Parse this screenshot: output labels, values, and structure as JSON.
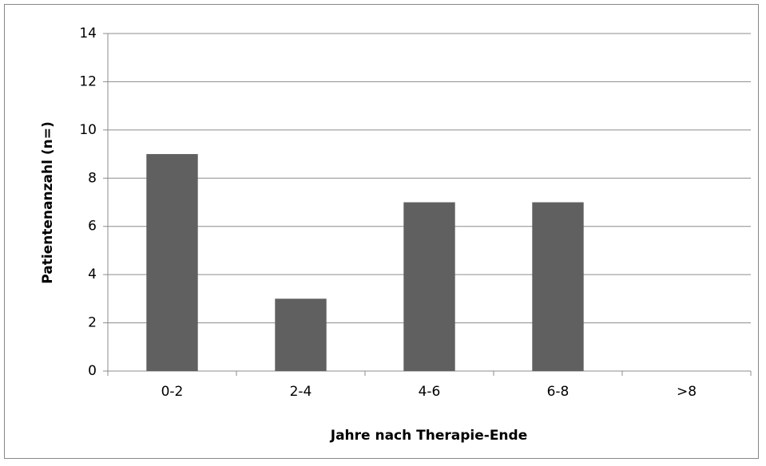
{
  "chart_data": {
    "type": "bar",
    "x_label": "Jahre nach Therapie-Ende",
    "y_label": "Patientenanzahl (n=)",
    "categories": [
      "0-2",
      "2-4",
      "4-6",
      "6-8",
      ">8"
    ],
    "values": [
      9,
      3,
      7,
      7,
      0
    ],
    "color": "#606060",
    "ylim": [
      0,
      14
    ],
    "yticks": [
      0,
      2,
      4,
      6,
      8,
      10,
      12,
      14
    ],
    "grid": true
  }
}
